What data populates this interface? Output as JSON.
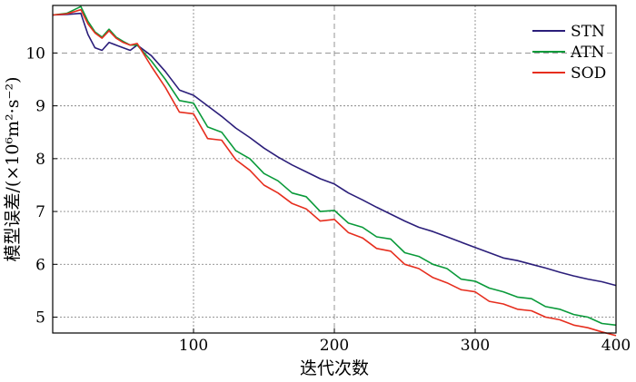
{
  "chart_data": {
    "type": "line",
    "xlabel": "迭代次数",
    "ylabel": "模型误差/(×10⁶m²·s⁻²)",
    "xlim": [
      0,
      400
    ],
    "ylim": [
      4.7,
      10.9
    ],
    "xticks": [
      100,
      200,
      300,
      400
    ],
    "yticks": [
      5,
      6,
      7,
      8,
      9,
      10
    ],
    "grid": "dotted at x=100,200,300 and y=5..9; dashed at y=10 and x=200",
    "legend_position": "top-right",
    "series": [
      {
        "name": "STN",
        "color": "#2b1e7a",
        "x": [
          0,
          10,
          20,
          25,
          30,
          35,
          40,
          45,
          50,
          55,
          60,
          70,
          80,
          90,
          100,
          110,
          120,
          130,
          140,
          150,
          160,
          170,
          180,
          190,
          200,
          210,
          220,
          230,
          240,
          250,
          260,
          270,
          280,
          290,
          300,
          310,
          320,
          330,
          340,
          350,
          360,
          370,
          380,
          390,
          400
        ],
        "values": [
          10.72,
          10.73,
          10.75,
          10.35,
          10.1,
          10.05,
          10.2,
          10.15,
          10.1,
          10.05,
          10.15,
          9.95,
          9.65,
          9.3,
          9.2,
          9.0,
          8.8,
          8.58,
          8.4,
          8.2,
          8.03,
          7.88,
          7.75,
          7.62,
          7.52,
          7.35,
          7.22,
          7.08,
          6.95,
          6.82,
          6.7,
          6.62,
          6.52,
          6.42,
          6.32,
          6.22,
          6.12,
          6.07,
          6.0,
          5.93,
          5.85,
          5.78,
          5.72,
          5.67,
          5.6
        ]
      },
      {
        "name": "ATN",
        "color": "#0a9a3a",
        "x": [
          0,
          10,
          20,
          25,
          30,
          35,
          40,
          45,
          50,
          55,
          60,
          70,
          80,
          90,
          100,
          110,
          120,
          130,
          140,
          150,
          160,
          170,
          180,
          190,
          200,
          210,
          220,
          230,
          240,
          250,
          260,
          270,
          280,
          290,
          300,
          310,
          320,
          330,
          340,
          350,
          360,
          370,
          380,
          390,
          400
        ],
        "values": [
          10.72,
          10.75,
          10.88,
          10.6,
          10.4,
          10.3,
          10.45,
          10.3,
          10.22,
          10.15,
          10.15,
          9.85,
          9.5,
          9.1,
          9.05,
          8.6,
          8.5,
          8.15,
          8.0,
          7.72,
          7.58,
          7.35,
          7.28,
          7.0,
          7.02,
          6.78,
          6.7,
          6.52,
          6.48,
          6.22,
          6.15,
          6.0,
          5.92,
          5.72,
          5.68,
          5.55,
          5.48,
          5.38,
          5.35,
          5.2,
          5.15,
          5.05,
          5.0,
          4.88,
          4.85
        ]
      },
      {
        "name": "SOD",
        "color": "#e62e1e",
        "x": [
          0,
          10,
          20,
          25,
          30,
          35,
          40,
          45,
          50,
          55,
          60,
          70,
          80,
          90,
          100,
          110,
          120,
          130,
          140,
          150,
          160,
          170,
          180,
          190,
          200,
          210,
          220,
          230,
          240,
          250,
          260,
          270,
          280,
          290,
          300,
          310,
          320,
          330,
          340,
          350,
          360,
          370,
          380,
          390,
          400
        ],
        "values": [
          10.72,
          10.74,
          10.82,
          10.55,
          10.38,
          10.28,
          10.42,
          10.28,
          10.2,
          10.15,
          10.18,
          9.75,
          9.35,
          8.88,
          8.85,
          8.38,
          8.35,
          7.98,
          7.78,
          7.5,
          7.35,
          7.15,
          7.05,
          6.82,
          6.85,
          6.6,
          6.5,
          6.3,
          6.25,
          6.0,
          5.92,
          5.75,
          5.65,
          5.52,
          5.48,
          5.3,
          5.25,
          5.15,
          5.12,
          5.0,
          4.95,
          4.85,
          4.8,
          4.72,
          4.65
        ]
      }
    ]
  }
}
